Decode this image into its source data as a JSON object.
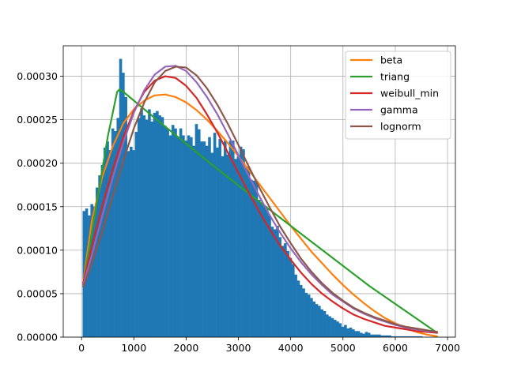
{
  "chart_data": {
    "type": "histogram-with-fitted-curves",
    "title": "",
    "xlabel": "",
    "ylabel": "",
    "xlim": [
      -350,
      7150
    ],
    "ylim": [
      0,
      0.000335
    ],
    "grid": true,
    "legend_placement": "top-right",
    "x_ticks": [
      0,
      1000,
      2000,
      3000,
      4000,
      5000,
      6000,
      7000
    ],
    "x_tick_labels": [
      "0",
      "1000",
      "2000",
      "3000",
      "4000",
      "5000",
      "6000",
      "7000"
    ],
    "y_ticks": [
      0,
      5e-05,
      0.0001,
      0.00015,
      0.0002,
      0.00025,
      0.0003
    ],
    "y_tick_labels": [
      "0.00000",
      "0.00005",
      "0.00010",
      "0.00015",
      "0.00020",
      "0.00025",
      "0.00030"
    ],
    "histogram": {
      "bin_start": 20,
      "bin_width": 50,
      "color": "#1f77b4",
      "values": [
        0.000145,
        0.000148,
        0.00014,
        0.000153,
        0.00015,
        0.000172,
        0.000186,
        0.000198,
        0.000218,
        0.000225,
        0.000215,
        0.00024,
        0.000237,
        0.000252,
        0.00032,
        0.000304,
        0.000276,
        0.000214,
        0.000219,
        0.000215,
        0.000236,
        0.000252,
        0.000263,
        0.000255,
        0.00025,
        0.000262,
        0.000248,
        0.000258,
        0.00026,
        0.000255,
        0.000253,
        0.000243,
        0.00024,
        0.000232,
        0.000244,
        0.00024,
        0.00023,
        0.00024,
        0.000232,
        0.000226,
        0.000232,
        0.00023,
        0.00022,
        0.000245,
        0.000239,
        0.000225,
        0.000225,
        0.00022,
        0.00023,
        0.000212,
        0.000235,
        0.000218,
        0.000228,
        0.000208,
        0.000226,
        0.00021,
        0.000226,
        0.000226,
        0.000205,
        0.000208,
        0.000219,
        0.000216,
        0.000195,
        0.000196,
        0.000181,
        0.00018,
        0.000178,
        0.000158,
        0.000155,
        0.000152,
        0.000148,
        0.00014,
        0.000127,
        0.000124,
        0.000128,
        0.000115,
        0.000105,
        0.000108,
        9.9e-05,
        9.1e-05,
        8.4e-05,
        7.2e-05,
        6.5e-05,
        6e-05,
        5.6e-05,
        5.1e-05,
        4.9e-05,
        4.5e-05,
        4.1e-05,
        3.8e-05,
        3.6e-05,
        3.2e-05,
        3e-05,
        2.6e-05,
        2.4e-05,
        2.2e-05,
        2e-05,
        1.8e-05,
        1.6e-05,
        1.2e-05,
        1.4e-05,
        1e-05,
        1.1e-05,
        9e-06,
        7e-06,
        7e-06,
        5e-06,
        4e-06,
        6e-06,
        5e-06,
        3e-06,
        3e-06,
        3e-06,
        3e-06,
        2e-06,
        2e-06,
        2e-06,
        2e-06,
        1e-06,
        1e-06,
        1e-06,
        1e-06,
        1e-06,
        1e-06,
        1e-06,
        1e-06,
        1e-06,
        1e-06,
        1e-06,
        1e-06
      ]
    },
    "series": [
      {
        "name": "beta",
        "color": "#ff7f0e",
        "x": [
          30,
          200,
          400,
          600,
          800,
          1000,
          1200,
          1400,
          1600,
          1800,
          2000,
          2200,
          2400,
          2600,
          2800,
          3000,
          3200,
          3400,
          3600,
          3800,
          4000,
          4200,
          4400,
          4600,
          4800,
          5000,
          5200,
          5400,
          5600,
          5800,
          6000,
          6200,
          6400,
          6600,
          6800
        ],
        "y": [
          6.2e-05,
          0.000135,
          0.000185,
          0.00022,
          0.000246,
          0.000262,
          0.000272,
          0.000278,
          0.000279,
          0.000276,
          0.00027,
          0.000261,
          0.00025,
          0.000237,
          0.000223,
          0.000208,
          0.000192,
          0.000176,
          0.00016,
          0.000144,
          0.000128,
          0.000113,
          9.8e-05,
          8.5e-05,
          7.2e-05,
          6e-05,
          4.9e-05,
          3.9e-05,
          3e-05,
          2.2e-05,
          1.6e-05,
          1e-05,
          6e-06,
          3e-06,
          1e-06
        ]
      },
      {
        "name": "triang",
        "color": "#2ca02c",
        "x": [
          30,
          500,
          680,
          730,
          780,
          1500,
          2500,
          3500,
          4500,
          5500,
          6800
        ],
        "y": [
          6e-05,
          0.00023,
          0.000282,
          0.000285,
          0.000283,
          0.000247,
          0.000198,
          0.000151,
          0.000105,
          5.9e-05,
          5e-06
        ]
      },
      {
        "name": "weibull_min",
        "color": "#d62728",
        "x": [
          30,
          200,
          400,
          600,
          800,
          1000,
          1200,
          1400,
          1600,
          1800,
          2000,
          2200,
          2400,
          2600,
          2800,
          3000,
          3200,
          3400,
          3600,
          3800,
          4000,
          4200,
          4400,
          4600,
          4800,
          5000,
          5200,
          5400,
          5600,
          5800,
          6000,
          6200,
          6400,
          6600,
          6800
        ],
        "y": [
          6.2e-05,
          0.000105,
          0.000152,
          0.000194,
          0.00023,
          0.00026,
          0.000282,
          0.000295,
          0.0003,
          0.000298,
          0.000289,
          0.000275,
          0.000256,
          0.000235,
          0.000212,
          0.000189,
          0.000166,
          0.000144,
          0.000124,
          0.000105,
          8.9e-05,
          7.4e-05,
          6.1e-05,
          5e-05,
          4.1e-05,
          3.3e-05,
          2.6e-05,
          2.1e-05,
          1.7e-05,
          1.3e-05,
          1.1e-05,
          9e-06,
          7e-06,
          6e-06,
          5e-06
        ]
      },
      {
        "name": "gamma",
        "color": "#9467bd",
        "x": [
          30,
          200,
          400,
          600,
          800,
          1000,
          1200,
          1400,
          1600,
          1800,
          2000,
          2200,
          2400,
          2600,
          2800,
          3000,
          3200,
          3400,
          3600,
          3800,
          4000,
          4200,
          4400,
          4600,
          4800,
          5000,
          5200,
          5400,
          5600,
          5800,
          6000,
          6200,
          6400,
          6600,
          6800
        ],
        "y": [
          6e-05,
          9.5e-05,
          0.00014,
          0.000184,
          0.000224,
          0.000258,
          0.000284,
          0.000302,
          0.000311,
          0.000312,
          0.000306,
          0.000293,
          0.000276,
          0.000256,
          0.000233,
          0.000209,
          0.000185,
          0.000162,
          0.00014,
          0.00012,
          0.000102,
          8.6e-05,
          7.2e-05,
          6e-05,
          4.9e-05,
          4.1e-05,
          3.3e-05,
          2.7e-05,
          2.2e-05,
          1.8e-05,
          1.4e-05,
          1.1e-05,
          9e-06,
          7e-06,
          6e-06
        ]
      },
      {
        "name": "lognorm",
        "color": "#8c564b",
        "x": [
          30,
          200,
          400,
          600,
          800,
          1000,
          1200,
          1400,
          1600,
          1800,
          2000,
          2200,
          2400,
          2600,
          2800,
          3000,
          3200,
          3400,
          3600,
          3800,
          4000,
          4200,
          4400,
          4600,
          4800,
          5000,
          5200,
          5400,
          5600,
          5800,
          6000,
          6200,
          6400,
          6600,
          6800
        ],
        "y": [
          5.8e-05,
          8.5e-05,
          0.000122,
          0.000163,
          0.000203,
          0.00024,
          0.00027,
          0.000293,
          0.000306,
          0.000311,
          0.00031,
          0.000301,
          0.000286,
          0.000267,
          0.000245,
          0.000221,
          0.000196,
          0.000172,
          0.000149,
          0.000127,
          0.000108,
          9e-05,
          7.5e-05,
          6.2e-05,
          5.1e-05,
          4.2e-05,
          3.4e-05,
          2.8e-05,
          2.3e-05,
          1.9e-05,
          1.5e-05,
          1.2e-05,
          1e-05,
          8e-06,
          6e-06
        ]
      }
    ]
  }
}
